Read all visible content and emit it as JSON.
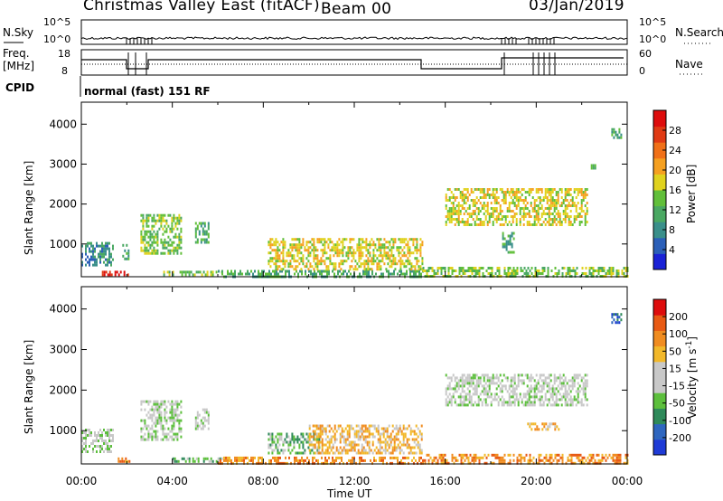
{
  "header": {
    "station": "Christmas Valley East (fitACF)",
    "beam": "Beam 00",
    "date": "03/Jan/2019"
  },
  "status_panels": {
    "nsky_label": "N.Sky",
    "nsky_ticks": [
      "10^5",
      "10^0"
    ],
    "nsearch_label": "N.Search",
    "nsearch_ticks": [
      "10^5",
      "10^0"
    ],
    "freq_label_line1": "Freq.",
    "freq_label_line2": "[MHz]",
    "freq_ticks": [
      "18",
      "8"
    ],
    "nave_label": "Nave",
    "nave_ticks": [
      "60",
      "0"
    ],
    "cpid_label": "CPID",
    "cpid_value": "normal (fast) 151 RF"
  },
  "colors": {
    "power_scale": [
      "#1a22d6",
      "#2b5fb8",
      "#3a8f8a",
      "#4aa862",
      "#61bf3a",
      "#e0d21e",
      "#f5a020",
      "#f07018",
      "#e03a14",
      "#dd0d0d"
    ],
    "velocity_scale": [
      "#1f3bd6",
      "#2e66bf",
      "#2f8a5a",
      "#5cbf3c",
      "#c8c8c8",
      "#c8c8c8",
      "#f2b82a",
      "#f08c20",
      "#e85a14",
      "#dd0d0d"
    ]
  },
  "chart_data": [
    {
      "type": "heatmap",
      "name": "power",
      "ylabel": "Slant Range [km]",
      "yticks": [
        1000,
        2000,
        3000,
        4000
      ],
      "ylim": [
        180,
        4550
      ],
      "colorbar_label": "Power [dB]",
      "colorbar_ticks": [
        "4",
        "8",
        "12",
        "16",
        "20",
        "24",
        "28"
      ],
      "regions": [
        {
          "t0": 0.0,
          "t1": 1.4,
          "r0": 500,
          "r1": 1050,
          "level": 2
        },
        {
          "t0": 0.9,
          "t1": 2.2,
          "r0": 200,
          "r1": 330,
          "level": 9
        },
        {
          "t0": 1.8,
          "t1": 2.1,
          "r0": 600,
          "r1": 1000,
          "level": 3
        },
        {
          "t0": 2.6,
          "t1": 4.4,
          "r0": 750,
          "r1": 1750,
          "level": 4
        },
        {
          "t0": 5.0,
          "t1": 5.6,
          "r0": 1050,
          "r1": 1550,
          "level": 3
        },
        {
          "t0": 3.6,
          "t1": 6.2,
          "r0": 230,
          "r1": 330,
          "level": 4
        },
        {
          "t0": 6.0,
          "t1": 15.0,
          "r0": 200,
          "r1": 350,
          "level": 3
        },
        {
          "t0": 8.2,
          "t1": 15.0,
          "r0": 380,
          "r1": 1150,
          "level": 5
        },
        {
          "t0": 15.0,
          "t1": 24.0,
          "r0": 200,
          "r1": 430,
          "level": 4
        },
        {
          "t0": 16.0,
          "t1": 22.2,
          "r0": 1450,
          "r1": 2400,
          "level": 5
        },
        {
          "t0": 18.5,
          "t1": 19.0,
          "r0": 800,
          "r1": 1300,
          "level": 3
        },
        {
          "t0": 22.4,
          "t1": 22.6,
          "r0": 2900,
          "r1": 3000,
          "level": 3
        },
        {
          "t0": 23.3,
          "t1": 23.7,
          "r0": 3650,
          "r1": 3900,
          "level": 3
        }
      ]
    },
    {
      "type": "heatmap",
      "name": "velocity",
      "ylabel": "Slant Range [km]",
      "yticks": [
        1000,
        2000,
        3000,
        4000
      ],
      "ylim": [
        180,
        4550
      ],
      "xlabel": "Time UT",
      "xticks": [
        "00:00",
        "04:00",
        "08:00",
        "12:00",
        "16:00",
        "20:00",
        "00:00"
      ],
      "colorbar_label": "Velocity [m s^-1]",
      "colorbar_ticks": [
        "-200",
        "-100",
        "-50",
        "-15",
        "15",
        "50",
        "100",
        "200"
      ],
      "regions": [
        {
          "t0": 0.0,
          "t1": 1.4,
          "r0": 450,
          "r1": 1050,
          "level": 4
        },
        {
          "t0": 1.6,
          "t1": 2.1,
          "r0": 250,
          "r1": 340,
          "level": 7
        },
        {
          "t0": 2.6,
          "t1": 4.4,
          "r0": 750,
          "r1": 1750,
          "level": 4
        },
        {
          "t0": 5.0,
          "t1": 5.6,
          "r0": 1050,
          "r1": 1550,
          "level": 4
        },
        {
          "t0": 4.0,
          "t1": 6.2,
          "r0": 230,
          "r1": 340,
          "level": 3
        },
        {
          "t0": 6.0,
          "t1": 15.0,
          "r0": 200,
          "r1": 360,
          "level": 7
        },
        {
          "t0": 8.2,
          "t1": 10.5,
          "r0": 450,
          "r1": 950,
          "level": 3
        },
        {
          "t0": 10.0,
          "t1": 15.0,
          "r0": 450,
          "r1": 1150,
          "level": 6
        },
        {
          "t0": 15.0,
          "t1": 24.0,
          "r0": 200,
          "r1": 430,
          "level": 7
        },
        {
          "t0": 16.0,
          "t1": 22.2,
          "r0": 1600,
          "r1": 2400,
          "level": 4
        },
        {
          "t0": 19.6,
          "t1": 21.0,
          "r0": 1050,
          "r1": 1200,
          "level": 6
        },
        {
          "t0": 23.3,
          "t1": 23.7,
          "r0": 3650,
          "r1": 3900,
          "level": 1
        }
      ]
    }
  ]
}
